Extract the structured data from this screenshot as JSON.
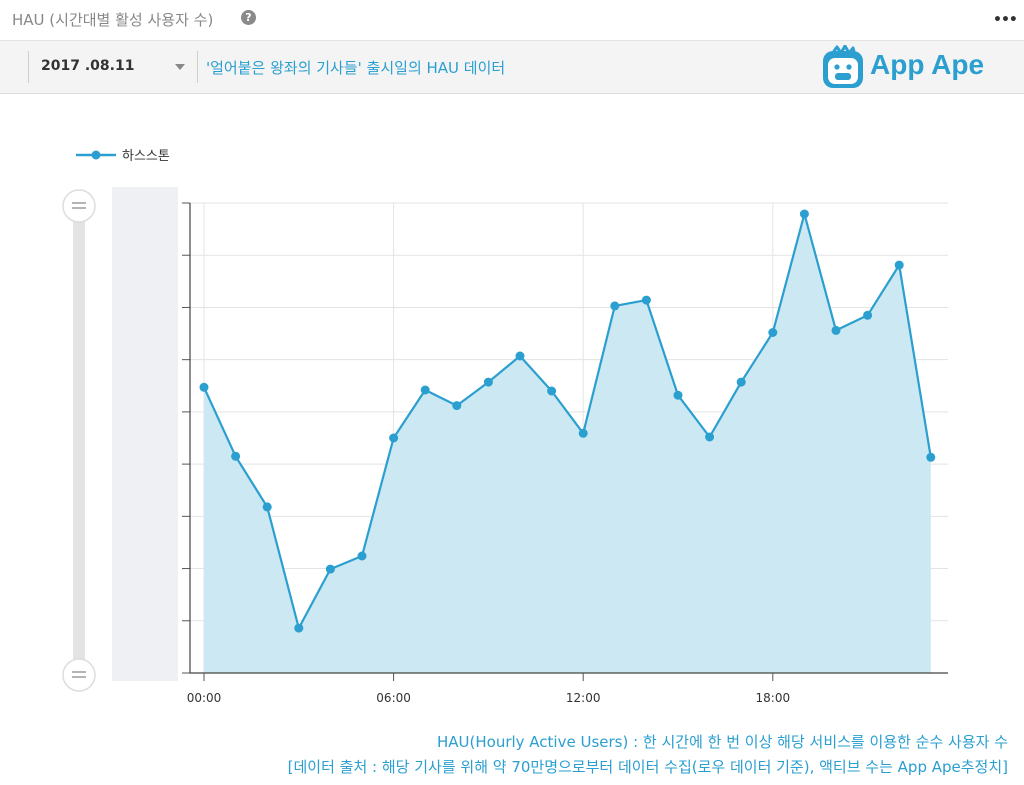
{
  "header": {
    "title": "HAU (시간대별 활성 사용자 수)",
    "help_icon": "question-circle-icon",
    "menu_icon": "more-dots-icon",
    "menu_glyph": "•••"
  },
  "filter": {
    "date": "2017 .08.11",
    "subtitle": "'얼어붙은 왕좌의 기사들' 출시일의 HAU 데이터",
    "logo_text": "App Ape"
  },
  "chart_data": {
    "type": "area",
    "series": [
      {
        "name": "하스스톤",
        "color": "#2a9fd0",
        "fill": "#cce8f2",
        "values": [
          0.547,
          0.415,
          0.318,
          0.086,
          0.199,
          0.224,
          0.45,
          0.542,
          0.512,
          0.557,
          0.607,
          0.54,
          0.459,
          0.703,
          0.714,
          0.532,
          0.452,
          0.557,
          0.652,
          0.879,
          0.656,
          0.685,
          0.781,
          0.413
        ]
      }
    ],
    "x_hours": [
      0,
      1,
      2,
      3,
      4,
      5,
      6,
      7,
      8,
      9,
      10,
      11,
      12,
      13,
      14,
      15,
      16,
      17,
      18,
      19,
      20,
      21,
      22,
      23
    ],
    "x_tick_labels": [
      "00:00",
      "06:00",
      "12:00",
      "18:00"
    ],
    "x_tick_hours": [
      0,
      6,
      12,
      18
    ],
    "ylim": [
      0,
      0.9
    ],
    "y_tick_count": 9,
    "y_labels_shown": false,
    "grid": true,
    "legend_position": "top-left",
    "range_slider": true
  },
  "footnotes": {
    "line1": "HAU(Hourly Active Users) : 한 시간에 한 번 이상 해당 서비스를 이용한 순수 사용자 수",
    "line2": "[데이터 출처 : 해당 기사를 위해 약 70만명으로부터 데이터 수집(로우 데이터 기준), 액티브 수는 App Ape추정치]"
  }
}
